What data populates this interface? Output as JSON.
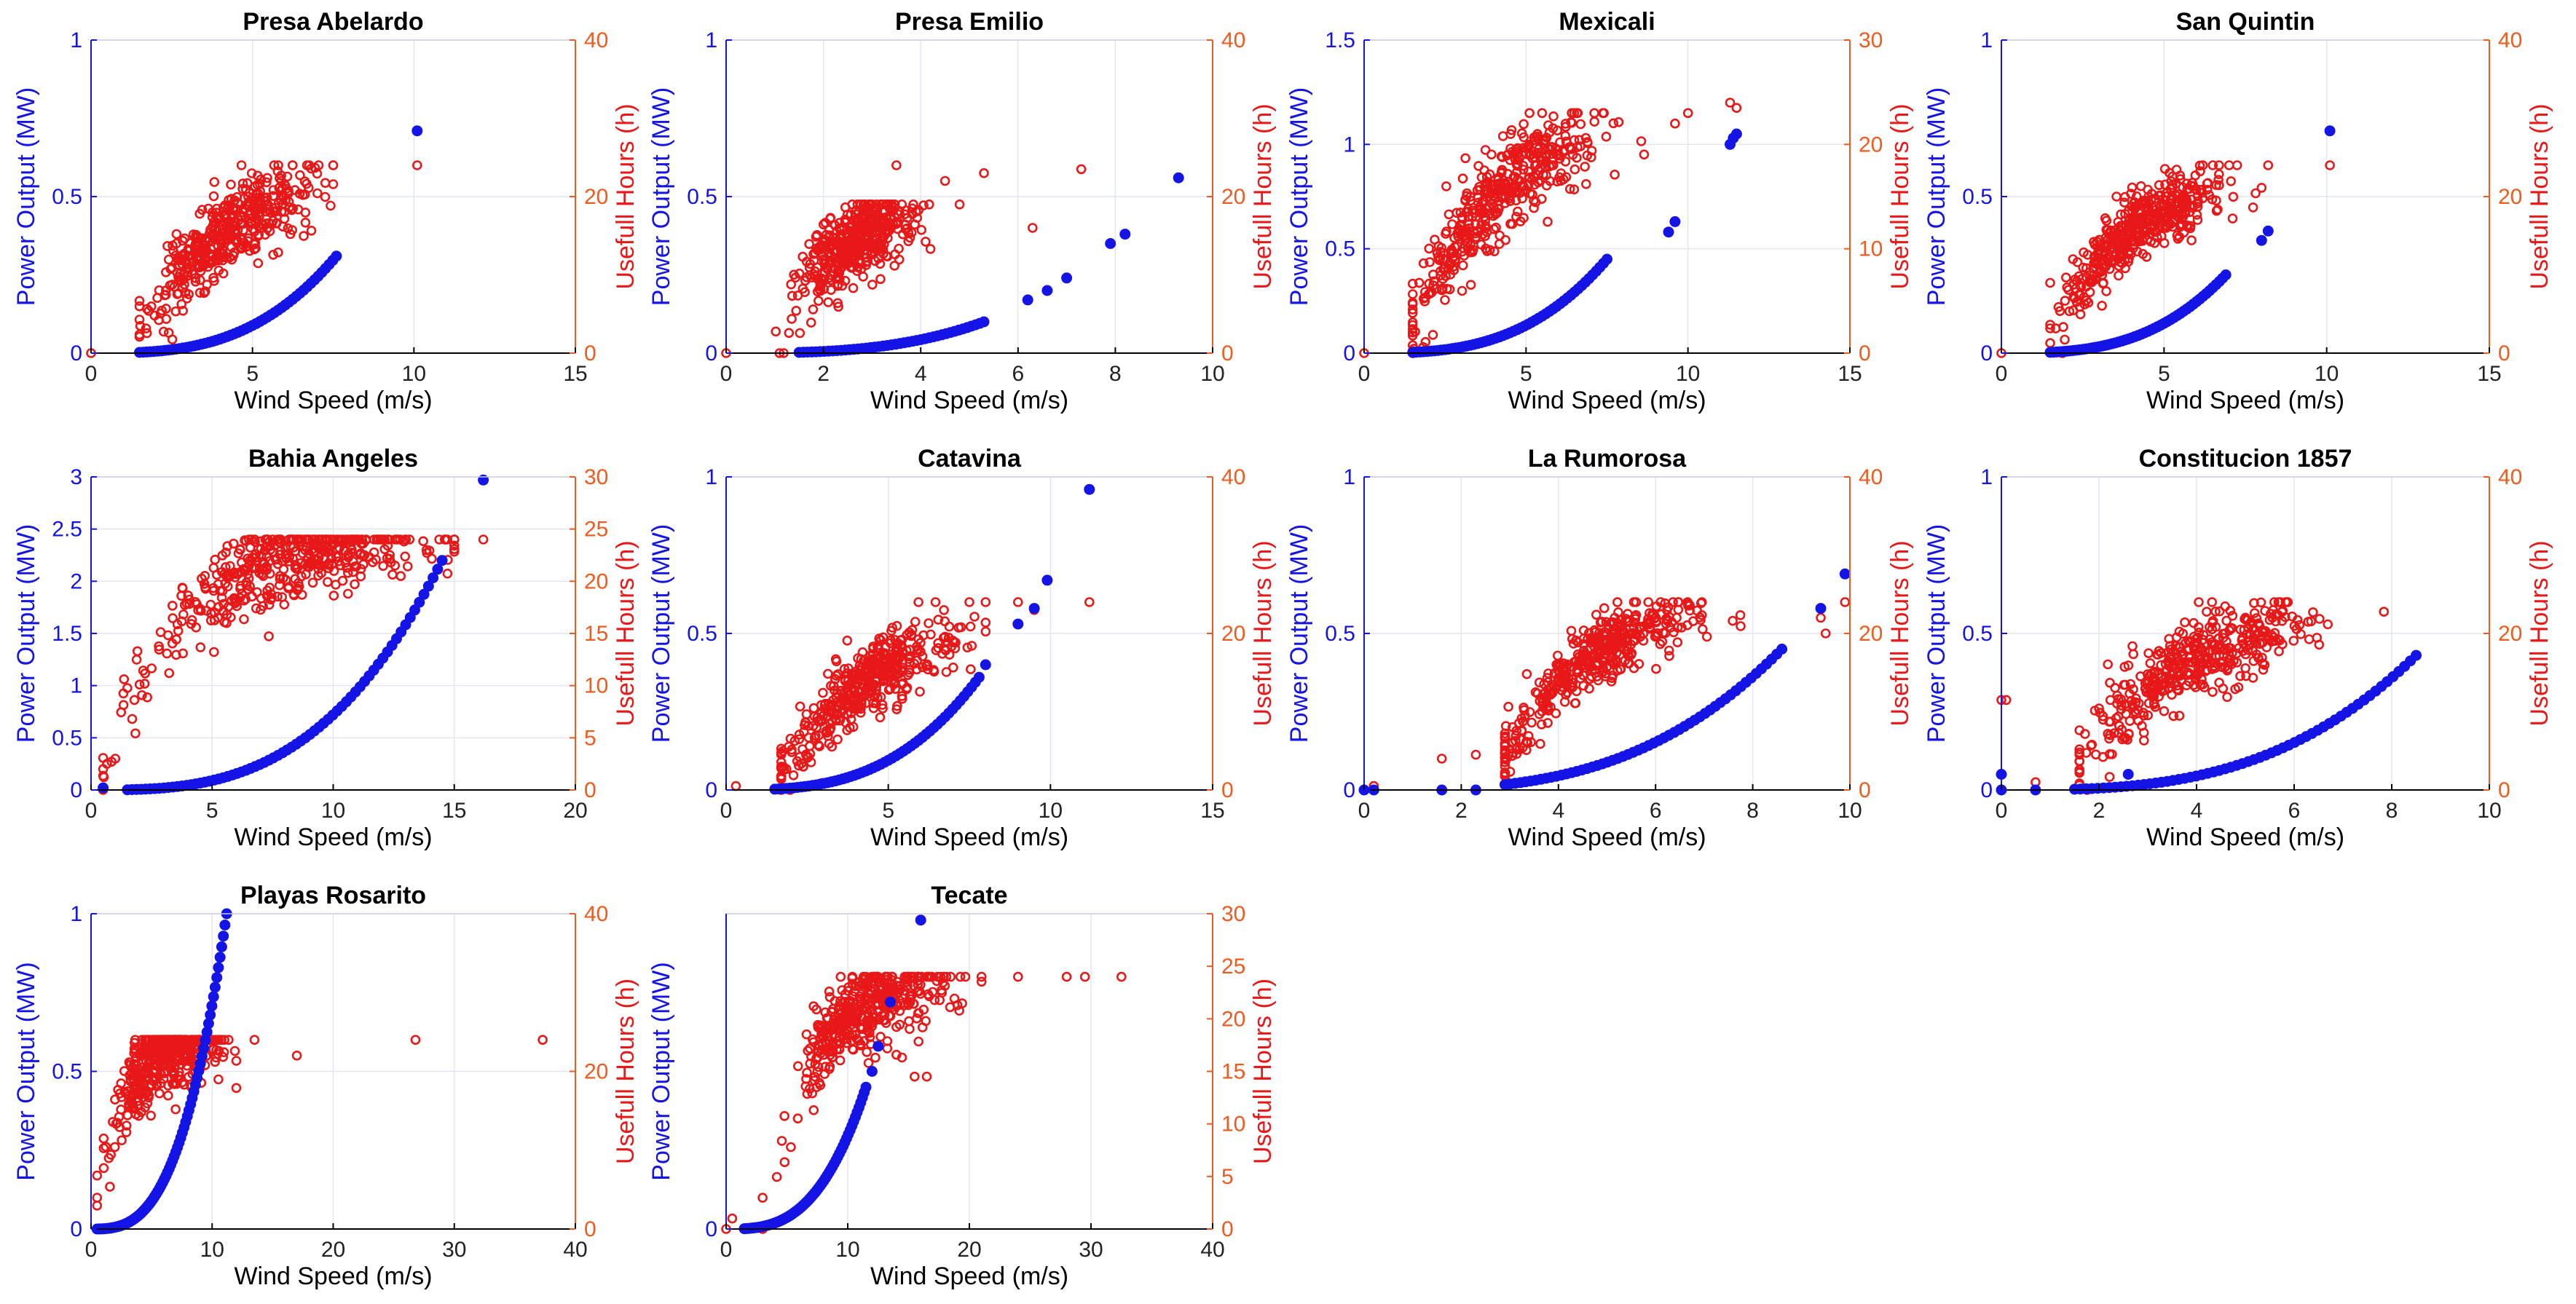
{
  "colors": {
    "power": "#1414e6",
    "hours": "#e81818",
    "right_axis": "#ef5a1e",
    "left_axis": "#1414e6",
    "grid": "#e3e6f2",
    "frame": "#000000"
  },
  "chart_data": [
    {
      "type": "scatter",
      "title": "Presa Abelardo",
      "xlabel": "Wind Speed (m/s)",
      "ylabel_left": "Power Output (MW)",
      "ylabel_right": "Usefull Hours (h)",
      "xlim": [
        0,
        15
      ],
      "ylim_left": [
        0,
        1
      ],
      "ylim_right": [
        0,
        40
      ],
      "xticks": [
        0,
        5,
        10,
        15
      ],
      "yticks_left": [
        0,
        0.5,
        1
      ],
      "yticks_right": [
        0,
        20,
        40
      ],
      "power_curve": {
        "x_min": 1.5,
        "x_max": 7.6,
        "y_at_max": 0.31,
        "exponent": 3,
        "n": 55
      },
      "power_extra": [
        [
          10.1,
          0.71
        ]
      ],
      "hours_cloud": {
        "x_mean": 4.2,
        "x_sd": 1.2,
        "x_min": 1.5,
        "x_max": 7.5,
        "y_cap": 24,
        "y_k": 0.35,
        "y_noise": 2.5,
        "y_floor": 0,
        "n": 420,
        "seed": 11
      },
      "hours_extra": [
        [
          0,
          0
        ],
        [
          10.1,
          24
        ],
        [
          7.5,
          24
        ],
        [
          5.8,
          24
        ]
      ]
    },
    {
      "type": "scatter",
      "title": "Presa Emilio",
      "xlabel": "Wind Speed (m/s)",
      "ylabel_left": "Power Output (MW)",
      "ylabel_right": "Usefull Hours (h)",
      "xlim": [
        0,
        10
      ],
      "ylim_left": [
        0,
        1
      ],
      "ylim_right": [
        0,
        40
      ],
      "xticks": [
        0,
        2,
        4,
        6,
        8,
        10
      ],
      "yticks_left": [
        0,
        0.5,
        1
      ],
      "yticks_right": [
        0,
        20,
        40
      ],
      "power_curve": {
        "x_min": 1.5,
        "x_max": 5.3,
        "y_at_max": 0.1,
        "exponent": 3,
        "n": 45
      },
      "power_extra": [
        [
          6.2,
          0.17
        ],
        [
          6.6,
          0.2
        ],
        [
          7.0,
          0.24
        ],
        [
          7.9,
          0.35
        ],
        [
          8.2,
          0.38
        ],
        [
          9.3,
          0.56
        ]
      ],
      "hours_cloud": {
        "x_mean": 2.6,
        "x_sd": 0.55,
        "x_min": 1.0,
        "x_max": 4.2,
        "y_cap": 19,
        "y_k": 0.7,
        "y_noise": 2.5,
        "y_floor": 0,
        "n": 420,
        "seed": 23
      },
      "hours_extra": [
        [
          0,
          0
        ],
        [
          3.5,
          24
        ],
        [
          4.5,
          22
        ],
        [
          5.3,
          23
        ],
        [
          6.3,
          16
        ],
        [
          7.3,
          23.5
        ],
        [
          4.8,
          19
        ]
      ]
    },
    {
      "type": "scatter",
      "title": "Mexicali",
      "xlabel": "Wind Speed (m/s)",
      "ylabel_left": "Power Output (MW)",
      "ylabel_right": "Usefull Hours (h)",
      "xlim": [
        0,
        15
      ],
      "ylim_left": [
        0,
        1.5
      ],
      "ylim_right": [
        0,
        30
      ],
      "xticks": [
        0,
        5,
        10,
        15
      ],
      "yticks_left": [
        0,
        0.5,
        1,
        1.5
      ],
      "yticks_right": [
        0,
        10,
        20,
        30
      ],
      "power_curve": {
        "x_min": 1.5,
        "x_max": 7.5,
        "y_at_max": 0.45,
        "exponent": 3,
        "n": 55
      },
      "power_extra": [
        [
          9.4,
          0.58
        ],
        [
          9.6,
          0.63
        ],
        [
          11.3,
          1.0
        ],
        [
          11.4,
          1.03
        ],
        [
          11.5,
          1.05
        ]
      ],
      "hours_cloud": {
        "x_mean": 4.3,
        "x_sd": 1.5,
        "x_min": 1.5,
        "x_max": 9.5,
        "y_cap": 23,
        "y_k": 0.38,
        "y_noise": 2.2,
        "y_floor": 0,
        "n": 420,
        "seed": 37
      },
      "hours_extra": [
        [
          0,
          0
        ],
        [
          11.3,
          24
        ],
        [
          11.5,
          23.5
        ],
        [
          10.0,
          23
        ],
        [
          9.6,
          22
        ]
      ]
    },
    {
      "type": "scatter",
      "title": "San Quintin",
      "xlabel": "Wind Speed (m/s)",
      "ylabel_left": "Power Output (MW)",
      "ylabel_right": "Usefull Hours (h)",
      "xlim": [
        0,
        15
      ],
      "ylim_left": [
        0,
        1
      ],
      "ylim_right": [
        0,
        40
      ],
      "xticks": [
        0,
        5,
        10,
        15
      ],
      "yticks_left": [
        0,
        0.5,
        1
      ],
      "yticks_right": [
        0,
        20,
        40
      ],
      "power_curve": {
        "x_min": 1.5,
        "x_max": 6.9,
        "y_at_max": 0.25,
        "exponent": 3,
        "n": 55
      },
      "power_extra": [
        [
          8.0,
          0.36
        ],
        [
          8.2,
          0.39
        ],
        [
          10.1,
          0.71
        ]
      ],
      "hours_cloud": {
        "x_mean": 4.3,
        "x_sd": 1.2,
        "x_min": 1.5,
        "x_max": 8.0,
        "y_cap": 24,
        "y_k": 0.38,
        "y_noise": 2.3,
        "y_floor": 0,
        "n": 420,
        "seed": 41
      },
      "hours_extra": [
        [
          0,
          0
        ],
        [
          10.1,
          24
        ],
        [
          8.2,
          24
        ],
        [
          7.0,
          24
        ],
        [
          6.5,
          24
        ],
        [
          2.2,
          12
        ]
      ]
    },
    {
      "type": "scatter",
      "title": "Bahia Angeles",
      "xlabel": "Wind Speed (m/s)",
      "ylabel_left": "Power Output (MW)",
      "ylabel_right": "Usefull Hours (h)",
      "xlim": [
        0,
        20
      ],
      "ylim_left": [
        0,
        3
      ],
      "ylim_right": [
        0,
        30
      ],
      "xticks": [
        0,
        5,
        10,
        15,
        20
      ],
      "yticks_left": [
        0,
        0.5,
        1,
        1.5,
        2,
        2.5,
        3
      ],
      "yticks_right": [
        0,
        5,
        10,
        15,
        20,
        25,
        30
      ],
      "power_curve": {
        "x_min": 1.5,
        "x_max": 14.5,
        "y_at_max": 2.2,
        "exponent": 3,
        "n": 70
      },
      "power_extra": [
        [
          0.5,
          0.02
        ],
        [
          16.2,
          2.97
        ]
      ],
      "hours_cloud": {
        "x_mean": 7.8,
        "x_sd": 3.0,
        "x_min": 0.5,
        "x_max": 15.0,
        "y_cap": 24,
        "y_k": 0.32,
        "y_noise": 2.0,
        "y_floor": 0,
        "n": 440,
        "seed": 53
      },
      "hours_extra": [
        [
          16.2,
          24
        ],
        [
          0.5,
          2
        ],
        [
          1.0,
          3
        ]
      ]
    },
    {
      "type": "scatter",
      "title": "Catavina",
      "xlabel": "Wind Speed (m/s)",
      "ylabel_left": "Power Output (MW)",
      "ylabel_right": "Usefull Hours (h)",
      "xlim": [
        0,
        15
      ],
      "ylim_left": [
        0,
        1
      ],
      "ylim_right": [
        0,
        40
      ],
      "xticks": [
        0,
        5,
        10,
        15
      ],
      "yticks_left": [
        0,
        0.5,
        1
      ],
      "yticks_right": [
        0,
        20,
        40
      ],
      "power_curve": {
        "x_min": 1.5,
        "x_max": 7.8,
        "y_at_max": 0.36,
        "exponent": 3,
        "n": 55
      },
      "power_extra": [
        [
          8.0,
          0.4
        ],
        [
          9.0,
          0.53
        ],
        [
          9.5,
          0.58
        ],
        [
          9.9,
          0.67
        ],
        [
          11.2,
          0.96
        ]
      ],
      "hours_cloud": {
        "x_mean": 4.3,
        "x_sd": 1.4,
        "x_min": 1.7,
        "x_max": 8.0,
        "y_cap": 24,
        "y_k": 0.3,
        "y_noise": 2.2,
        "y_floor": 0,
        "n": 420,
        "seed": 67
      },
      "hours_extra": [
        [
          0.3,
          0.5
        ],
        [
          9.5,
          23
        ],
        [
          11.2,
          24
        ],
        [
          9.0,
          24
        ],
        [
          8.0,
          24
        ],
        [
          7.5,
          24
        ]
      ]
    },
    {
      "type": "scatter",
      "title": "La Rumorosa",
      "xlabel": "Wind Speed (m/s)",
      "ylabel_left": "Power Output (MW)",
      "ylabel_right": "Usefull Hours (h)",
      "xlim": [
        0,
        10
      ],
      "ylim_left": [
        0,
        1
      ],
      "ylim_right": [
        0,
        40
      ],
      "xticks": [
        0,
        2,
        4,
        6,
        8,
        10
      ],
      "yticks_left": [
        0,
        0.5,
        1
      ],
      "yticks_right": [
        0,
        20,
        40
      ],
      "power_curve": {
        "x_min": 2.9,
        "x_max": 8.6,
        "y_at_max": 0.45,
        "exponent": 3,
        "n": 55
      },
      "power_extra": [
        [
          0.0,
          0.0
        ],
        [
          0.2,
          0.0
        ],
        [
          1.6,
          0.0
        ],
        [
          2.3,
          0.0
        ],
        [
          9.4,
          0.58
        ],
        [
          9.9,
          0.69
        ]
      ],
      "hours_cloud": {
        "x_mean": 4.7,
        "x_sd": 1.1,
        "x_min": 2.9,
        "x_max": 9.0,
        "y_cap": 24,
        "y_k": 0.6,
        "y_noise": 2.0,
        "y_floor": 0,
        "n": 420,
        "seed": 79
      },
      "hours_extra": [
        [
          0,
          0
        ],
        [
          0.2,
          0.5
        ],
        [
          1.6,
          4
        ],
        [
          2.3,
          4.5
        ],
        [
          9.4,
          22
        ],
        [
          9.5,
          20
        ],
        [
          9.9,
          24
        ]
      ]
    },
    {
      "type": "scatter",
      "title": "Constitucion 1857",
      "xlabel": "Wind Speed (m/s)",
      "ylabel_left": "Power Output (MW)",
      "ylabel_right": "Usefull Hours (h)",
      "xlim": [
        0,
        10
      ],
      "ylim_left": [
        0,
        1
      ],
      "ylim_right": [
        0,
        40
      ],
      "xticks": [
        0,
        2,
        4,
        6,
        8,
        10
      ],
      "yticks_left": [
        0,
        0.5,
        1
      ],
      "yticks_right": [
        0,
        20,
        40
      ],
      "power_curve": {
        "x_min": 1.5,
        "x_max": 8.5,
        "y_at_max": 0.43,
        "exponent": 3,
        "n": 60
      },
      "power_extra": [
        [
          0.0,
          0.05
        ],
        [
          0.0,
          0.0
        ],
        [
          0.7,
          0.0
        ],
        [
          2.6,
          0.05
        ]
      ],
      "hours_cloud": {
        "x_mean": 3.9,
        "x_sd": 1.3,
        "x_min": 1.6,
        "x_max": 8.5,
        "y_cap": 24,
        "y_k": 0.45,
        "y_noise": 2.5,
        "y_floor": 0,
        "n": 420,
        "seed": 91
      },
      "hours_extra": [
        [
          0,
          11.5
        ],
        [
          0.1,
          11.5
        ],
        [
          0.7,
          1
        ]
      ]
    },
    {
      "type": "scatter",
      "title": "Playas Rosarito",
      "xlabel": "Wind Speed (m/s)",
      "ylabel_left": "Power Output (MW)",
      "ylabel_right": "Usefull Hours (h)",
      "xlim": [
        0,
        40
      ],
      "ylim_left": [
        0,
        1
      ],
      "ylim_right": [
        0,
        40
      ],
      "xticks": [
        0,
        10,
        20,
        30,
        40
      ],
      "yticks_left": [
        0,
        0.5,
        1
      ],
      "yticks_right": [
        0,
        20,
        40
      ],
      "power_curve": {
        "x_min": 0.5,
        "x_max": 11.2,
        "y_at_max": 1.0,
        "exponent": 3,
        "n": 80
      },
      "power_extra": [],
      "hours_cloud": {
        "x_mean": 6.0,
        "x_sd": 2.2,
        "x_min": 0.5,
        "x_max": 12.0,
        "y_cap": 24,
        "y_k": 0.45,
        "y_noise": 2.5,
        "y_floor": 0,
        "n": 420,
        "seed": 103
      },
      "hours_extra": [
        [
          13.5,
          24
        ],
        [
          17,
          22
        ],
        [
          26.8,
          24
        ],
        [
          37.3,
          24
        ]
      ]
    },
    {
      "type": "scatter",
      "title": "Tecate",
      "xlabel": "Wind Speed (m/s)",
      "ylabel_left": "Power Output (MW)",
      "ylabel_right": "Usefull Hours (h)",
      "xlim": [
        0,
        40
      ],
      "ylim_left": [
        0,
        1
      ],
      "ylim_right": [
        0,
        30
      ],
      "xticks": [
        0,
        10,
        20,
        30,
        40
      ],
      "yticks_left": [
        0
      ],
      "yticks_right": [
        0,
        5,
        10,
        15,
        20,
        25,
        30
      ],
      "power_curve": {
        "x_min": 1.5,
        "x_max": 11.5,
        "y_at_max": 0.45,
        "exponent": 3,
        "n": 70
      },
      "power_extra": [
        [
          12.0,
          0.5
        ],
        [
          12.5,
          0.58
        ],
        [
          13.5,
          0.72
        ],
        [
          16.0,
          0.98
        ]
      ],
      "hours_cloud": {
        "x_mean": 11.5,
        "x_sd": 3.2,
        "x_min": 3.0,
        "x_max": 21.0,
        "y_cap": 24,
        "y_k": 0.25,
        "y_noise": 2.0,
        "y_floor": 0,
        "n": 430,
        "seed": 117
      },
      "hours_extra": [
        [
          0,
          0
        ],
        [
          0.5,
          1
        ],
        [
          24,
          24
        ],
        [
          28,
          24
        ],
        [
          29.5,
          24
        ],
        [
          32.5,
          24
        ],
        [
          15.5,
          14.5
        ],
        [
          16.5,
          14.5
        ]
      ]
    }
  ]
}
